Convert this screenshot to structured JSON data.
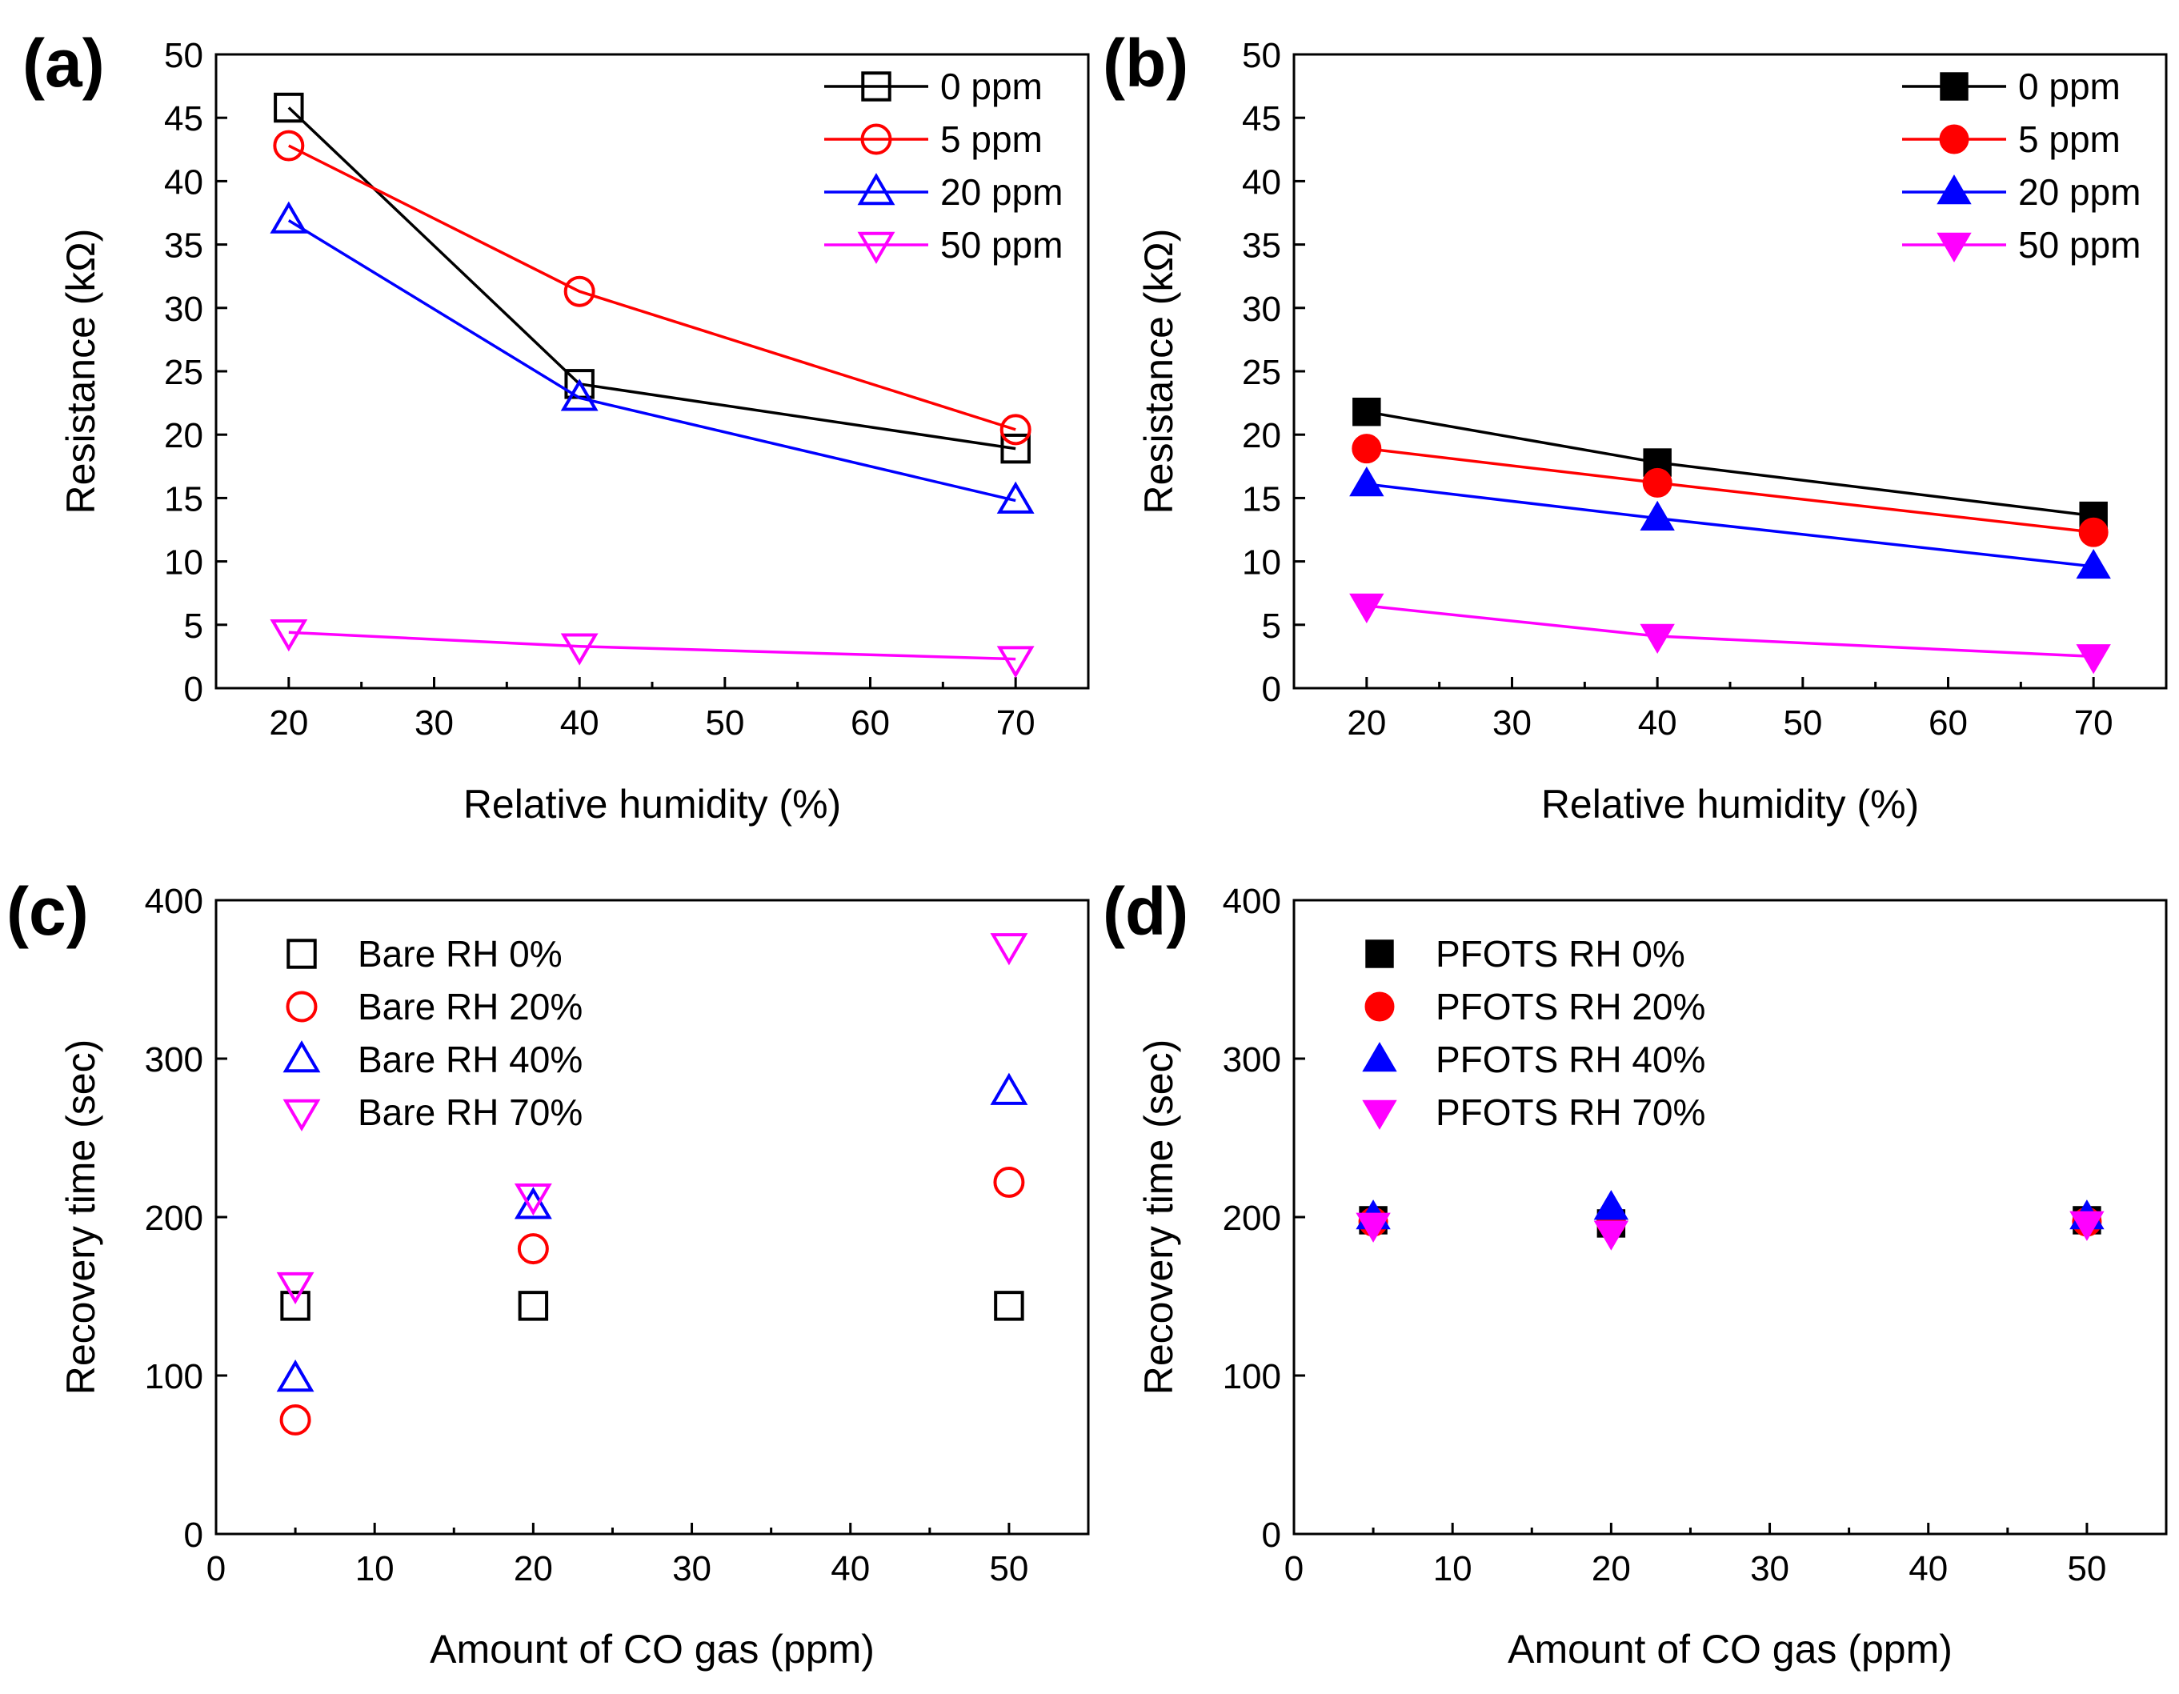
{
  "figure": {
    "title": ""
  },
  "chart_data": [
    {
      "panel": "(a)",
      "type": "line",
      "marker_fill": "open",
      "x": [
        20,
        40,
        70
      ],
      "xlabel": "Relative humidity (%)",
      "ylabel": "Resistance (kΩ)",
      "xlim": [
        15,
        75
      ],
      "ylim": [
        0,
        50
      ],
      "xticks": [
        20,
        30,
        40,
        50,
        60,
        70
      ],
      "yticks": [
        0,
        5,
        10,
        15,
        20,
        25,
        30,
        35,
        40,
        45,
        50
      ],
      "legend_position": "top-right",
      "series": [
        {
          "name": "0 ppm",
          "marker": "square",
          "color": "#000000",
          "values": [
            45.8,
            24.0,
            18.9
          ]
        },
        {
          "name": "5 ppm",
          "marker": "circle",
          "color": "#ff0000",
          "values": [
            42.8,
            31.3,
            20.4
          ]
        },
        {
          "name": "20 ppm",
          "marker": "triangle-up",
          "color": "#0000ff",
          "values": [
            36.9,
            22.9,
            14.8
          ]
        },
        {
          "name": "50 ppm",
          "marker": "triangle-down",
          "color": "#ff00ff",
          "values": [
            4.4,
            3.3,
            2.3
          ]
        }
      ]
    },
    {
      "panel": "(b)",
      "type": "line",
      "marker_fill": "filled",
      "x": [
        20,
        40,
        70
      ],
      "xlabel": "Relative humidity (%)",
      "ylabel": "Resistance (kΩ)",
      "xlim": [
        15,
        75
      ],
      "ylim": [
        0,
        50
      ],
      "xticks": [
        20,
        30,
        40,
        50,
        60,
        70
      ],
      "yticks": [
        0,
        5,
        10,
        15,
        20,
        25,
        30,
        35,
        40,
        45,
        50
      ],
      "legend_position": "top-right",
      "series": [
        {
          "name": "0 ppm",
          "marker": "square",
          "color": "#000000",
          "values": [
            21.8,
            17.8,
            13.6
          ]
        },
        {
          "name": "5 ppm",
          "marker": "circle",
          "color": "#ff0000",
          "values": [
            18.9,
            16.2,
            12.3
          ]
        },
        {
          "name": "20 ppm",
          "marker": "triangle-up",
          "color": "#0000ff",
          "values": [
            16.1,
            13.4,
            9.6
          ]
        },
        {
          "name": "50 ppm",
          "marker": "triangle-down",
          "color": "#ff00ff",
          "values": [
            6.5,
            4.1,
            2.5
          ]
        }
      ]
    },
    {
      "panel": "(c)",
      "type": "scatter",
      "marker_fill": "open",
      "x": [
        5,
        20,
        50
      ],
      "xlabel": "Amount of CO gas (ppm)",
      "ylabel": "Recovery time (sec)",
      "xlim": [
        0,
        55
      ],
      "ylim": [
        0,
        400
      ],
      "xticks": [
        0,
        10,
        20,
        30,
        40,
        50
      ],
      "yticks": [
        0,
        100,
        200,
        300,
        400
      ],
      "legend_position": "top-left",
      "series": [
        {
          "name": "Bare RH 0%",
          "marker": "square",
          "color": "#000000",
          "values": [
            144,
            144,
            144
          ]
        },
        {
          "name": "Bare RH 20%",
          "marker": "circle",
          "color": "#ff0000",
          "values": [
            72,
            180,
            222
          ]
        },
        {
          "name": "Bare RH 40%",
          "marker": "triangle-up",
          "color": "#0000ff",
          "values": [
            98,
            207,
            279
          ]
        },
        {
          "name": "Bare RH 70%",
          "marker": "triangle-down",
          "color": "#ff00ff",
          "values": [
            157,
            213,
            371
          ]
        }
      ]
    },
    {
      "panel": "(d)",
      "type": "scatter",
      "marker_fill": "filled",
      "x": [
        5,
        20,
        50
      ],
      "xlabel": "Amount of CO gas (ppm)",
      "ylabel": "Recovery time (sec)",
      "xlim": [
        0,
        55
      ],
      "ylim": [
        0,
        400
      ],
      "xticks": [
        0,
        10,
        20,
        30,
        40,
        50
      ],
      "yticks": [
        0,
        100,
        200,
        300,
        400
      ],
      "legend_position": "top-left",
      "series": [
        {
          "name": "PFOTS RH 0%",
          "marker": "square",
          "color": "#000000",
          "values": [
            198,
            196,
            198
          ]
        },
        {
          "name": "PFOTS RH 20%",
          "marker": "circle",
          "color": "#ff0000",
          "values": [
            197,
            197,
            197
          ]
        },
        {
          "name": "PFOTS RH 40%",
          "marker": "triangle-up",
          "color": "#0000ff",
          "values": [
            200,
            206,
            200
          ]
        },
        {
          "name": "PFOTS RH 70%",
          "marker": "triangle-down",
          "color": "#ff00ff",
          "values": [
            195,
            190,
            196
          ]
        }
      ]
    }
  ]
}
